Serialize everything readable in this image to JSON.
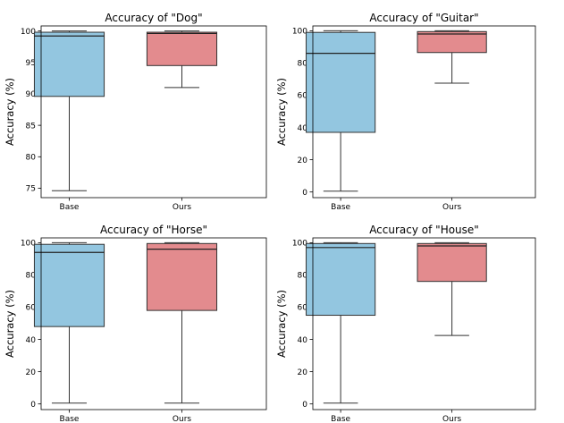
{
  "chart_data": [
    {
      "type": "box",
      "title": "Accuracy of \"Dog\"",
      "ylabel": "Accuracy (%)",
      "xlabel": "",
      "categories": [
        "Base",
        "Ours"
      ],
      "ylim": [
        73.5,
        100.8
      ],
      "yticks": [
        75,
        80,
        85,
        90,
        95,
        100
      ],
      "boxes": [
        {
          "name": "Base",
          "color": "#93c6e0",
          "min": 74.6,
          "q1": 89.6,
          "median": 99.2,
          "q3": 99.8,
          "max": 100
        },
        {
          "name": "Ours",
          "color": "#e38b8e",
          "min": 91.0,
          "q1": 94.5,
          "median": 99.6,
          "q3": 99.8,
          "max": 100
        }
      ]
    },
    {
      "type": "box",
      "title": "Accuracy of \"Guitar\"",
      "ylabel": "Accuracy (%)",
      "xlabel": "",
      "categories": [
        "Base",
        "Ours"
      ],
      "ylim": [
        -3.5,
        103
      ],
      "yticks": [
        0,
        20,
        40,
        60,
        80,
        100
      ],
      "boxes": [
        {
          "name": "Base",
          "color": "#93c6e0",
          "min": 0.5,
          "q1": 37,
          "median": 86,
          "q3": 99,
          "max": 100
        },
        {
          "name": "Ours",
          "color": "#e38b8e",
          "min": 67.5,
          "q1": 86.5,
          "median": 98,
          "q3": 99.5,
          "max": 100
        }
      ]
    },
    {
      "type": "box",
      "title": "Accuracy of \"Horse\"",
      "ylabel": "Accuracy (%)",
      "xlabel": "",
      "categories": [
        "Base",
        "Ours"
      ],
      "ylim": [
        -3.5,
        103
      ],
      "yticks": [
        0,
        20,
        40,
        60,
        80,
        100
      ],
      "boxes": [
        {
          "name": "Base",
          "color": "#93c6e0",
          "min": 0.5,
          "q1": 48,
          "median": 94,
          "q3": 99,
          "max": 100
        },
        {
          "name": "Ours",
          "color": "#e38b8e",
          "min": 0.5,
          "q1": 58,
          "median": 96,
          "q3": 99.5,
          "max": 100
        }
      ]
    },
    {
      "type": "box",
      "title": "Accuracy of \"House\"",
      "ylabel": "Accuracy (%)",
      "xlabel": "",
      "categories": [
        "Base",
        "Ours"
      ],
      "ylim": [
        -3.5,
        103
      ],
      "yticks": [
        0,
        20,
        40,
        60,
        80,
        100
      ],
      "boxes": [
        {
          "name": "Base",
          "color": "#93c6e0",
          "min": 0.5,
          "q1": 55,
          "median": 97,
          "q3": 99.5,
          "max": 100
        },
        {
          "name": "Ours",
          "color": "#e38b8e",
          "min": 42.5,
          "q1": 76,
          "median": 98,
          "q3": 99.5,
          "max": 100
        }
      ]
    }
  ]
}
